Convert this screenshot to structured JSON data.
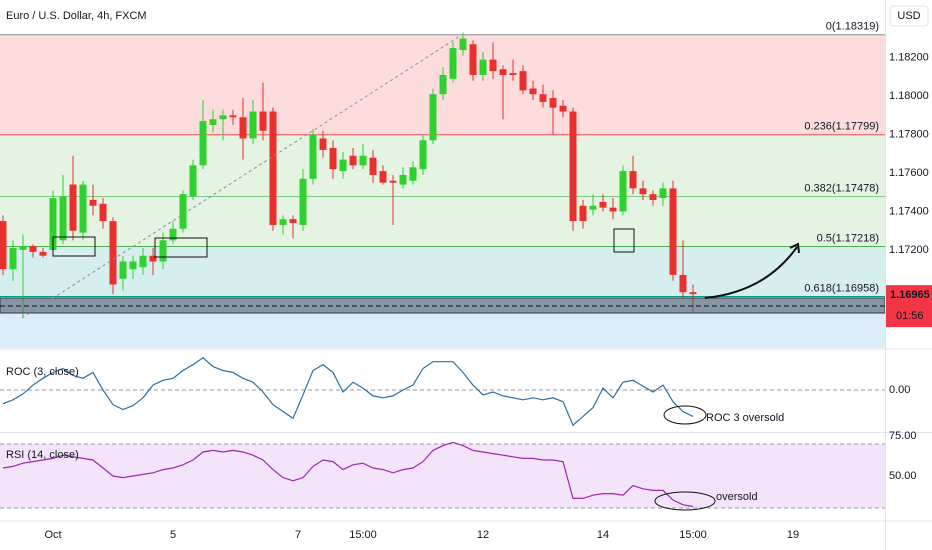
{
  "chart_data": [
    {
      "type": "candlestick",
      "title": "Euro / U.S. Dollar, 4h, FXCM",
      "unit": "USD",
      "up_color": "#2fd12f",
      "down_color": "#e8312f",
      "open": [
        1.1735,
        1.171,
        1.172,
        1.1722,
        1.1719,
        1.172,
        1.1725,
        1.1754,
        1.1729,
        1.1746,
        1.1744,
        1.1735,
        1.1705,
        1.171,
        1.1711,
        1.1717,
        1.1714,
        1.1725,
        1.1731,
        1.1748,
        1.1764,
        1.1785,
        1.1788,
        1.179,
        1.1789,
        1.1778,
        1.1792,
        1.1792,
        1.1733,
        1.1736,
        1.1733,
        1.1757,
        1.1778,
        1.1773,
        1.1761,
        1.1769,
        1.1764,
        1.1768,
        1.1761,
        1.1756,
        1.1754,
        1.1756,
        1.1762,
        1.1777,
        1.1801,
        1.1809,
        1.1824,
        1.1827,
        1.1811,
        1.1819,
        1.1814,
        1.1812,
        1.1813,
        1.1804,
        1.1801,
        1.1799,
        1.1795,
        1.1792,
        1.1743,
        1.1741,
        1.1745,
        1.1742,
        1.174,
        1.1761,
        1.1752,
        1.1749,
        1.1747,
        1.1752,
        1.1707,
        1.1698
      ],
      "high": [
        1.1738,
        1.1725,
        1.1728,
        1.1723,
        1.1721,
        1.1751,
        1.1759,
        1.1769,
        1.1756,
        1.1754,
        1.1747,
        1.1737,
        1.1717,
        1.1717,
        1.1721,
        1.1721,
        1.1729,
        1.1735,
        1.1751,
        1.1767,
        1.1798,
        1.1793,
        1.1793,
        1.1793,
        1.1799,
        1.1798,
        1.1807,
        1.1794,
        1.1738,
        1.1738,
        1.1762,
        1.1783,
        1.1782,
        1.1777,
        1.1771,
        1.1773,
        1.1775,
        1.1772,
        1.1764,
        1.1759,
        1.1763,
        1.1766,
        1.178,
        1.1804,
        1.1815,
        1.1828,
        1.1833,
        1.1829,
        1.1823,
        1.1828,
        1.1816,
        1.1819,
        1.1816,
        1.1808,
        1.1806,
        1.1803,
        1.1798,
        1.1794,
        1.1746,
        1.1749,
        1.1749,
        1.1747,
        1.1764,
        1.1769,
        1.1756,
        1.1751,
        1.1755,
        1.1756,
        1.1725,
        1.1702
      ],
      "low": [
        1.1707,
        1.1704,
        1.1685,
        1.1716,
        1.1716,
        1.1717,
        1.1723,
        1.1725,
        1.1725,
        1.1738,
        1.1731,
        1.1697,
        1.1699,
        1.1705,
        1.1707,
        1.1707,
        1.171,
        1.1723,
        1.1729,
        1.1746,
        1.1762,
        1.1781,
        1.1777,
        1.1785,
        1.1767,
        1.1775,
        1.1777,
        1.173,
        1.1728,
        1.1726,
        1.173,
        1.1754,
        1.1768,
        1.1757,
        1.1757,
        1.1762,
        1.1762,
        1.1755,
        1.1754,
        1.1733,
        1.1752,
        1.1754,
        1.1759,
        1.1775,
        1.1798,
        1.1807,
        1.1821,
        1.1808,
        1.1808,
        1.1809,
        1.1788,
        1.1808,
        1.1801,
        1.1798,
        1.1794,
        1.178,
        1.1789,
        1.173,
        1.1731,
        1.1738,
        1.174,
        1.1736,
        1.1738,
        1.1749,
        1.1746,
        1.1743,
        1.1743,
        1.1704,
        1.1695,
        1.1688
      ],
      "close": [
        1.171,
        1.1721,
        1.1722,
        1.1719,
        1.1717,
        1.1747,
        1.1748,
        1.173,
        1.1754,
        1.1743,
        1.1735,
        1.1702,
        1.1714,
        1.1714,
        1.1717,
        1.1714,
        1.1725,
        1.1731,
        1.1749,
        1.1764,
        1.1787,
        1.1788,
        1.179,
        1.1789,
        1.1778,
        1.1792,
        1.1782,
        1.1733,
        1.1736,
        1.1734,
        1.1757,
        1.178,
        1.1772,
        1.1762,
        1.1767,
        1.1764,
        1.1769,
        1.1759,
        1.1755,
        1.1755,
        1.1759,
        1.1763,
        1.1777,
        1.1801,
        1.1811,
        1.1825,
        1.183,
        1.1811,
        1.1819,
        1.1813,
        1.1811,
        1.1811,
        1.1803,
        1.1801,
        1.1797,
        1.1794,
        1.1792,
        1.1735,
        1.1735,
        1.1743,
        1.1742,
        1.174,
        1.1761,
        1.1752,
        1.1749,
        1.1746,
        1.1752,
        1.1707,
        1.1698,
        1.1697
      ],
      "ylim": [
        1.1669,
        1.185
      ],
      "yticks": [
        {
          "value": 1.182,
          "label": "1.18200"
        },
        {
          "value": 1.18,
          "label": "1.18000"
        },
        {
          "value": 1.178,
          "label": "1.17800"
        },
        {
          "value": 1.176,
          "label": "1.17600"
        },
        {
          "value": 1.174,
          "label": "1.17400"
        },
        {
          "value": 1.172,
          "label": "1.17200"
        }
      ],
      "xlim": [
        -0.3,
        88.2
      ],
      "xticks": [
        {
          "value": 5,
          "label": "Oct"
        },
        {
          "value": 17,
          "label": "5"
        },
        {
          "value": 29.5,
          "label": "7"
        },
        {
          "value": 36,
          "label": "15:00"
        },
        {
          "value": 48,
          "label": "12"
        },
        {
          "value": 60,
          "label": "14"
        },
        {
          "value": 69,
          "label": "15:00"
        },
        {
          "value": 79,
          "label": "19"
        }
      ],
      "levels": [
        {
          "value": 1.18319,
          "label": "0(1.18319)",
          "color": "#8a8d96",
          "fill": "#fcdcdc"
        },
        {
          "value": 1.17799,
          "label": "0.236(1.17799)",
          "color": "#ef5350",
          "fill": "#e4f3e2"
        },
        {
          "value": 1.17478,
          "label": "0.382(1.17478)",
          "color": "#81c784",
          "fill": "#e4f3e2"
        },
        {
          "value": 1.17218,
          "label": "0.5(1.17218)",
          "color": "#4caf50",
          "fill": "#d6eeee"
        },
        {
          "value": 1.16958,
          "label": "0.618(1.16958)",
          "color": "#089981",
          "fill": "#dcedfa"
        }
      ],
      "last_price": 1.16965,
      "countdown": "01:56",
      "last_price_color": "#f23645"
    },
    {
      "type": "line",
      "title": "ROC (3, close)",
      "color": "#2a6fa8",
      "values": [
        -0.14,
        -0.1,
        -0.04,
        0.05,
        0.12,
        0.18,
        0.22,
        0.15,
        0.12,
        0.18,
        0.0,
        -0.15,
        -0.2,
        -0.16,
        -0.08,
        0.05,
        0.1,
        0.12,
        0.2,
        0.26,
        0.33,
        0.24,
        0.2,
        0.18,
        0.12,
        0.08,
        -0.02,
        -0.15,
        -0.22,
        -0.29,
        -0.05,
        0.2,
        0.26,
        0.18,
        -0.02,
        0.08,
        0.02,
        -0.06,
        -0.08,
        -0.06,
        0.0,
        0.05,
        0.22,
        0.29,
        0.29,
        0.29,
        0.18,
        0.05,
        -0.05,
        -0.02,
        -0.06,
        -0.08,
        -0.1,
        -0.08,
        -0.1,
        -0.08,
        -0.12,
        -0.36,
        -0.27,
        -0.18,
        0.02,
        -0.08,
        0.08,
        0.1,
        0.04,
        -0.02,
        0.05,
        -0.12,
        -0.22,
        -0.27
      ],
      "ylim": [
        -0.43,
        0.41
      ],
      "yticks": [
        {
          "value": 0,
          "label": "0.00"
        }
      ],
      "grid": true,
      "annotations": [
        "ROC 3 oversold"
      ]
    },
    {
      "type": "line",
      "title": "RSI (14, close)",
      "color": "#9c27b0",
      "values": [
        55,
        56,
        58,
        59,
        60,
        61,
        63,
        62,
        61,
        60,
        55,
        50,
        49,
        50,
        51,
        52,
        54,
        55,
        57,
        60,
        65,
        66,
        65,
        66,
        65,
        63,
        60,
        54,
        49,
        47,
        49,
        56,
        60,
        59,
        54,
        57,
        58,
        55,
        54,
        52,
        54,
        55,
        59,
        66,
        69,
        71,
        69,
        66,
        65,
        64,
        63,
        62,
        61,
        61,
        60,
        60,
        59,
        36,
        36,
        38,
        39,
        39,
        38,
        44,
        42,
        41,
        41,
        35,
        32,
        31
      ],
      "ylim": [
        22.5,
        76.9
      ],
      "yticks": [
        {
          "value": 75,
          "label": "75.00"
        },
        {
          "value": 50,
          "label": "50.00"
        }
      ],
      "band": [
        30,
        70
      ],
      "band_color": "#f3e4fb",
      "grid": false,
      "annotations": [
        "oversold"
      ]
    }
  ]
}
